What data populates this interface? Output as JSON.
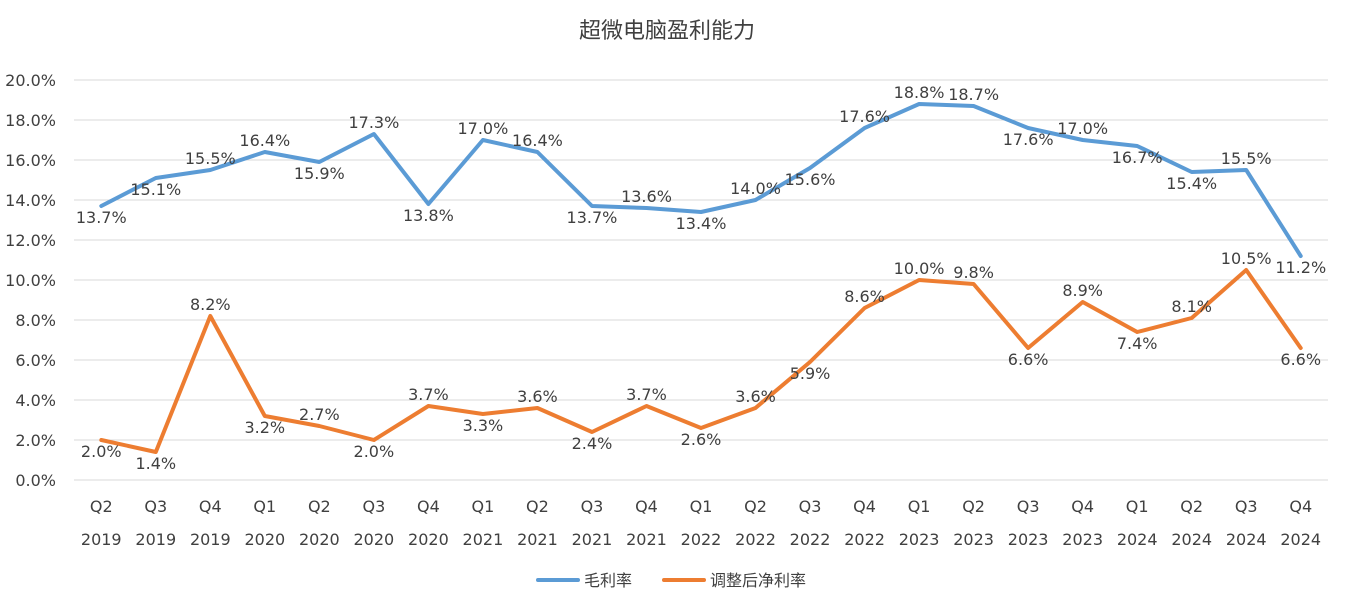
{
  "chart_data": {
    "type": "line",
    "title": "超微电脑盈利能力",
    "categories": [
      [
        "Q2",
        "2019"
      ],
      [
        "Q3",
        "2019"
      ],
      [
        "Q4",
        "2019"
      ],
      [
        "Q1",
        "2020"
      ],
      [
        "Q2",
        "2020"
      ],
      [
        "Q3",
        "2020"
      ],
      [
        "Q4",
        "2020"
      ],
      [
        "Q1",
        "2021"
      ],
      [
        "Q2",
        "2021"
      ],
      [
        "Q3",
        "2021"
      ],
      [
        "Q4",
        "2021"
      ],
      [
        "Q1",
        "2022"
      ],
      [
        "Q2",
        "2022"
      ],
      [
        "Q3",
        "2022"
      ],
      [
        "Q4",
        "2022"
      ],
      [
        "Q1",
        "2023"
      ],
      [
        "Q2",
        "2023"
      ],
      [
        "Q3",
        "2023"
      ],
      [
        "Q4",
        "2023"
      ],
      [
        "Q1",
        "2024"
      ],
      [
        "Q2",
        "2024"
      ],
      [
        "Q3",
        "2024"
      ],
      [
        "Q4",
        "2024"
      ]
    ],
    "ylim": [
      0,
      20
    ],
    "yticks": [
      "0.0%",
      "2.0%",
      "4.0%",
      "6.0%",
      "8.0%",
      "10.0%",
      "12.0%",
      "14.0%",
      "16.0%",
      "18.0%",
      "20.0%"
    ],
    "grid": true,
    "legend_position": "bottom",
    "series": [
      {
        "name": "毛利率",
        "color": "#5B9BD5",
        "values": [
          13.7,
          15.1,
          15.5,
          16.4,
          15.9,
          17.3,
          13.8,
          17.0,
          16.4,
          13.7,
          13.6,
          13.4,
          14.0,
          15.6,
          17.6,
          18.8,
          18.7,
          17.6,
          17.0,
          16.7,
          15.4,
          15.5,
          11.2
        ],
        "labels": [
          "13.7%",
          "15.1%",
          "15.5%",
          "16.4%",
          "15.9%",
          "17.3%",
          "13.8%",
          "17.0%",
          "16.4%",
          "13.7%",
          "13.6%",
          "13.4%",
          "14.0%",
          "15.6%",
          "17.6%",
          "18.8%",
          "18.7%",
          "17.6%",
          "17.0%",
          "16.7%",
          "15.4%",
          "15.5%",
          "11.2%"
        ]
      },
      {
        "name": "调整后净利率",
        "color": "#ED7D31",
        "values": [
          2.0,
          1.4,
          8.2,
          3.2,
          2.7,
          2.0,
          3.7,
          3.3,
          3.6,
          2.4,
          3.7,
          2.6,
          3.6,
          5.9,
          8.6,
          10.0,
          9.8,
          6.6,
          8.9,
          7.4,
          8.1,
          10.5,
          6.6
        ],
        "labels": [
          "2.0%",
          "1.4%",
          "8.2%",
          "3.2%",
          "2.7%",
          "2.0%",
          "3.7%",
          "3.3%",
          "3.6%",
          "2.4%",
          "3.7%",
          "2.6%",
          "3.6%",
          "5.9%",
          "8.6%",
          "10.0%",
          "9.8%",
          "6.6%",
          "8.9%",
          "7.4%",
          "8.1%",
          "10.5%",
          "6.6%"
        ]
      }
    ]
  }
}
